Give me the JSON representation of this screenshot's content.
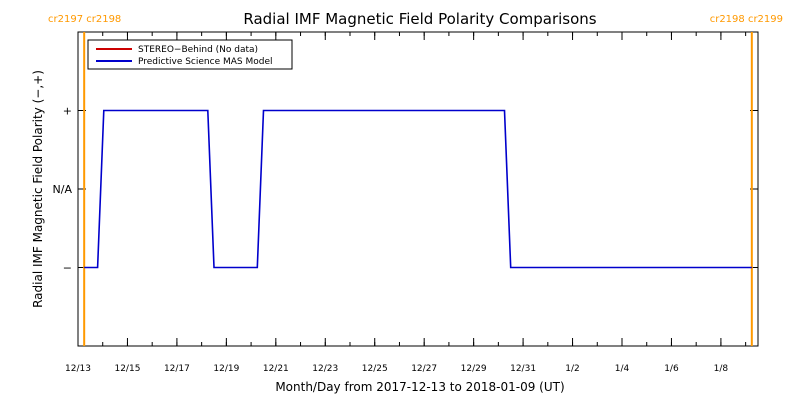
{
  "chart_data": {
    "type": "line",
    "title": "Radial IMF Magnetic Field Polarity Comparisons",
    "xlabel": "Month/Day from 2017-12-13 to 2018-01-09 (UT)",
    "ylabel": "Radial IMF Magnetic Field Polarity (−,+)",
    "x_unit": "day",
    "x_start_date": "2017-12-13",
    "x_range": [
      "2017-12-13",
      "2018-01-09 12:00"
    ],
    "y_categories": [
      "−",
      "N/A",
      "+"
    ],
    "y_tick_values": [
      -1,
      0,
      1
    ],
    "y_range": [
      -2,
      2
    ],
    "x_ticks": [
      {
        "date": "2017-12-13",
        "label": "12/13"
      },
      {
        "date": "2017-12-15",
        "label": "12/15"
      },
      {
        "date": "2017-12-17",
        "label": "12/17"
      },
      {
        "date": "2017-12-19",
        "label": "12/19"
      },
      {
        "date": "2017-12-21",
        "label": "12/21"
      },
      {
        "date": "2017-12-23",
        "label": "12/23"
      },
      {
        "date": "2017-12-25",
        "label": "12/25"
      },
      {
        "date": "2017-12-27",
        "label": "12/27"
      },
      {
        "date": "2017-12-29",
        "label": "12/29"
      },
      {
        "date": "2017-12-31",
        "label": "12/31"
      },
      {
        "date": "2018-01-02",
        "label": "1/2"
      },
      {
        "date": "2018-01-04",
        "label": "1/4"
      },
      {
        "date": "2018-01-06",
        "label": "1/6"
      },
      {
        "date": "2018-01-08",
        "label": "1/8"
      }
    ],
    "series": [
      {
        "name": "STEREO−Behind (No data)",
        "color": "#cc0000",
        "points": []
      },
      {
        "name": "Predictive Science MAS Model",
        "color": "#0000cc",
        "points": [
          {
            "x": "2017-12-13 06:00",
            "y": -1
          },
          {
            "x": "2017-12-13 19:00",
            "y": -1
          },
          {
            "x": "2017-12-14 01:00",
            "y": 1
          },
          {
            "x": "2017-12-18 06:00",
            "y": 1
          },
          {
            "x": "2017-12-18 12:00",
            "y": -1
          },
          {
            "x": "2017-12-20 06:00",
            "y": -1
          },
          {
            "x": "2017-12-20 12:00",
            "y": 1
          },
          {
            "x": "2017-12-30 06:00",
            "y": 1
          },
          {
            "x": "2017-12-30 12:00",
            "y": -1
          },
          {
            "x": "2018-01-09 06:00",
            "y": -1
          }
        ]
      }
    ],
    "legend_position": "top-left",
    "grid": false,
    "rotation_markers": [
      {
        "date": "2017-12-13 06:00",
        "labels": [
          "cr2197",
          "cr2198"
        ],
        "color": "#ff9900"
      },
      {
        "date": "2018-01-09 06:00",
        "labels": [
          "cr2198",
          "cr2199"
        ],
        "color": "#ff9900"
      }
    ]
  }
}
